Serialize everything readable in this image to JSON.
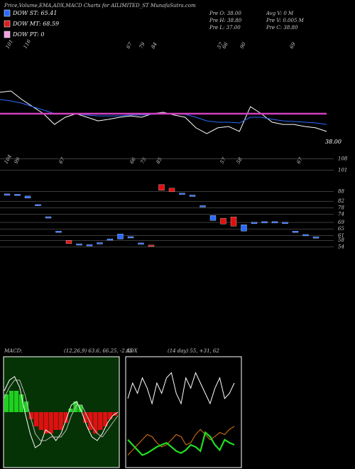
{
  "header": {
    "title": "Price,Volume,EMA,ADX,MACD Charts for AILIMITED_ST MunafaSutra.com"
  },
  "dow": [
    {
      "label": "DOW ST: 65.41",
      "color": "#2a6bff"
    },
    {
      "label": "DOW MT: 68.59",
      "color": "#d81c1c"
    },
    {
      "label": "DOW PT: 0",
      "color": "#f0a0e0"
    }
  ],
  "stats": [
    "Pre  O: 38.00",
    "Avg V: 0  M",
    "Pre  H: 38.80",
    "Pre  V: 0.005 M",
    "Pre  L: 37.00",
    "Pre  C: 38.80"
  ],
  "chart_data": [
    {
      "type": "line",
      "price_label": "38.00",
      "ylim": [
        30,
        110
      ],
      "top_labels": [
        "101",
        "116",
        "67",
        "79",
        "84",
        "57",
        "66",
        "90",
        "69"
      ],
      "bottom_labels": [
        "104",
        "99",
        "67",
        "66",
        "75",
        "85",
        "57",
        "58",
        "67"
      ],
      "series": [
        {
          "name": "Price",
          "color": "#ffffff",
          "values": [
            73.9,
            74.9,
            68.7,
            63.5,
            58.4,
            50.6,
            55.8,
            58.4,
            55.8,
            53.2,
            54.3,
            55.8,
            56.8,
            55.8,
            58.4,
            59.4,
            57.4,
            55.8,
            48.1,
            43.9,
            48.1,
            49.1,
            45.5,
            63.5,
            58.4,
            52.2,
            50.6,
            50.6,
            49.1,
            48.1,
            45.5
          ]
        },
        {
          "name": "EMA",
          "color": "#2a6bff",
          "values": [
            68.7,
            67.7,
            66.1,
            63.5,
            61.0,
            58.4,
            58.4,
            58.4,
            57.4,
            56.8,
            56.8,
            56.8,
            57.4,
            57.4,
            57.9,
            58.4,
            58.4,
            57.9,
            55.8,
            53.2,
            52.2,
            52.2,
            51.7,
            55.8,
            55.8,
            54.3,
            53.2,
            52.7,
            52.2,
            51.7,
            50.6
          ]
        },
        {
          "name": "DOW",
          "color": "#d040c0",
          "values": [
            58.4,
            58.4,
            58.4,
            58.4,
            58.4,
            58.4,
            58.4,
            58.4,
            58.4,
            58.4,
            58.4,
            58.4,
            58.4,
            58.4,
            58.4,
            58.4,
            58.4,
            58.4,
            58.4,
            58.4,
            58.4,
            58.4,
            58.4,
            58.4,
            58.4,
            58.4,
            58.4,
            58.4,
            58.4,
            58.4,
            58.4
          ]
        }
      ]
    },
    {
      "type": "candlestick",
      "ylim": [
        52,
        110
      ],
      "yticks": [
        108,
        101,
        88,
        82,
        78,
        74,
        69,
        65,
        61,
        58,
        54
      ],
      "up_color": "#2a6bff",
      "down_color": "#e01010",
      "opens": [
        86.1,
        85.9,
        83.9,
        79.7,
        72.2,
        63.4,
        57.9,
        55.6,
        55.2,
        55.8,
        58.6,
        58.8,
        60.0,
        56.2,
        55.1,
        92.2,
        90.0,
        86.7,
        85.5,
        79.0,
        70.2,
        71.6,
        72.4,
        63.7,
        68.8,
        69.2,
        69.2,
        68.8,
        63.4,
        61.3,
        59.9
      ],
      "values": [
        86.5,
        86.3,
        85.2,
        80.0,
        72.5,
        63.7,
        56.0,
        55.9,
        55.4,
        56.6,
        58.9,
        61.9,
        60.3,
        56.4,
        54.8,
        88.7,
        87.8,
        87.0,
        85.8,
        79.3,
        73.3,
        68.0,
        66.7,
        67.6,
        69.1,
        69.5,
        69.5,
        69.1,
        63.7,
        61.6,
        60.2
      ]
    },
    {
      "type": "macd",
      "title": "MACD:",
      "subtitle": "(12,26,9) 63.6, 66.25, -2.65",
      "ylim": [
        -15,
        15
      ],
      "histogram": [
        5,
        6,
        6,
        5,
        3,
        -2,
        -4,
        -5,
        -6,
        -6,
        -5,
        -5,
        -3,
        1,
        3,
        2,
        -3,
        -5,
        -6,
        -5,
        -4,
        -2,
        -1
      ],
      "series": [
        {
          "name": "MACD",
          "color": "#ffffff",
          "values": [
            6,
            9,
            10,
            7,
            0,
            -6,
            -10,
            -9,
            -5,
            -6,
            -8,
            -6,
            -2,
            2,
            3,
            0,
            -4,
            -7,
            -8,
            -6,
            -3,
            -1,
            0
          ]
        },
        {
          "name": "Signal",
          "color": "#bbbbbb",
          "values": [
            4,
            7,
            9,
            9,
            5,
            -1,
            -6,
            -8,
            -8,
            -7,
            -7,
            -7,
            -5,
            -1,
            2,
            2,
            -1,
            -4,
            -6,
            -7,
            -5,
            -3,
            -1
          ]
        }
      ]
    },
    {
      "type": "line",
      "title": "ADX",
      "subtitle": "(14 day) 55, +31, 62",
      "ylim": [
        0,
        100
      ],
      "series": [
        {
          "name": "ADX",
          "color": "#ffffff",
          "values": [
            65,
            80,
            70,
            85,
            75,
            60,
            80,
            70,
            85,
            90,
            70,
            60,
            85,
            75,
            90,
            80,
            70,
            60,
            75,
            85,
            65,
            70,
            80
          ]
        },
        {
          "name": "+DI",
          "color": "#e07818",
          "values": [
            10,
            15,
            20,
            25,
            30,
            28,
            22,
            18,
            20,
            25,
            30,
            28,
            20,
            22,
            30,
            35,
            30,
            25,
            28,
            32,
            30,
            35,
            38
          ]
        },
        {
          "name": "-DI",
          "color": "#20e020",
          "values": [
            25,
            20,
            15,
            10,
            12,
            15,
            18,
            20,
            22,
            18,
            14,
            12,
            15,
            20,
            18,
            14,
            32,
            28,
            20,
            15,
            25,
            22,
            20
          ]
        }
      ]
    }
  ]
}
